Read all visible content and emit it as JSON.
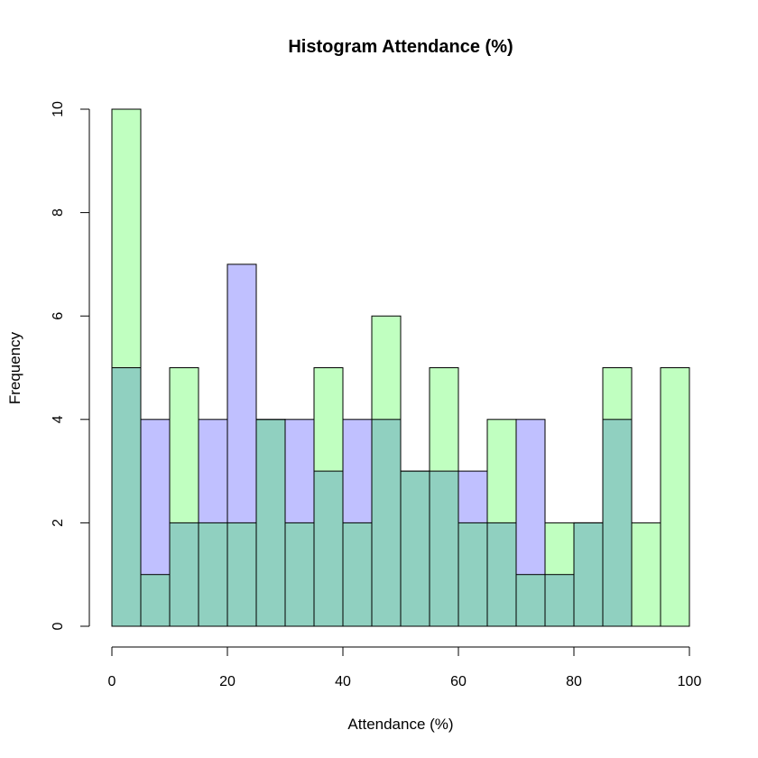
{
  "chart_data": {
    "type": "bar",
    "title": "Histogram Attendance (%)",
    "xlabel": "Attendance (%)",
    "ylabel": "Frequency",
    "xlim": [
      0,
      100
    ],
    "ylim": [
      0,
      10
    ],
    "bin_width": 5,
    "bins": [
      0,
      5,
      10,
      15,
      20,
      25,
      30,
      35,
      40,
      45,
      50,
      55,
      60,
      65,
      70,
      75,
      80,
      85,
      90,
      95
    ],
    "x_ticks": [
      "0",
      "20",
      "40",
      "60",
      "80",
      "100"
    ],
    "y_ticks": [
      "0",
      "2",
      "4",
      "6",
      "8",
      "10"
    ],
    "series": [
      {
        "name": "blue",
        "color": "#c0c0ff",
        "values": [
          5,
          4,
          2,
          4,
          7,
          4,
          4,
          3,
          4,
          4,
          3,
          3,
          3,
          2,
          4,
          1,
          2,
          4,
          0,
          0
        ]
      },
      {
        "name": "green",
        "color": "#c0ffc0",
        "values": [
          10,
          1,
          5,
          2,
          2,
          4,
          2,
          5,
          2,
          6,
          3,
          5,
          2,
          4,
          1,
          2,
          2,
          5,
          2,
          5
        ]
      }
    ],
    "overlap_color": "#90d0c0",
    "grid": false,
    "legend": "none"
  }
}
